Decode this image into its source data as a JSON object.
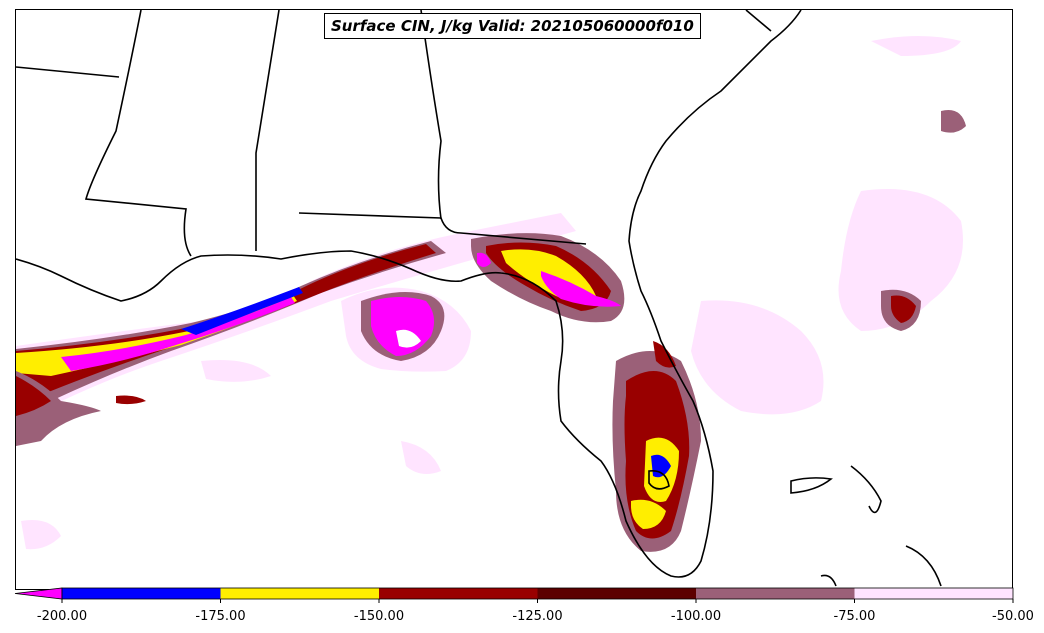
{
  "title": "Surface CIN, J/kg Valid: 202105060000f010",
  "colorbar": {
    "levels": [
      -200,
      -175,
      -150,
      -125,
      -100,
      -75,
      -50
    ],
    "tick_labels": [
      "-200.00",
      "-175.00",
      "-150.00",
      "-125.00",
      "-100.00",
      "-75.00",
      "-50.00"
    ],
    "colors": [
      "#0000ff",
      "#ffee00",
      "#990000",
      "#5c0000",
      "#9b6078",
      "#ffe4ff"
    ],
    "under_color": "#ff00ff",
    "extend": "min"
  },
  "palette": {
    "magenta": "#ff00ff",
    "blue": "#0000ff",
    "yellow": "#ffee00",
    "red": "#990000",
    "darkred": "#5c0000",
    "mauve": "#9b6078",
    "pink": "#ffe4ff",
    "coastline": "#000000"
  }
}
